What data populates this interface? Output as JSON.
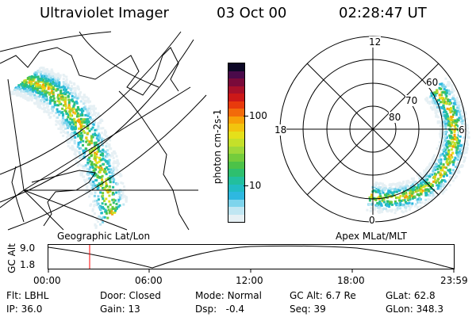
{
  "header": {
    "title": "Ultraviolet Imager",
    "date": "03 Oct 00",
    "time": "02:28:47 UT"
  },
  "colorbar": {
    "label": "photon cm-2s-1",
    "ticks": [
      "100",
      "10"
    ],
    "colors": [
      "#0d0826",
      "#4a0a4a",
      "#7a0a3a",
      "#a8102a",
      "#cc1818",
      "#e83a0c",
      "#f26a0a",
      "#f7a008",
      "#f2c40e",
      "#e5e01a",
      "#c4e02a",
      "#9ed83a",
      "#74cc3c",
      "#4cc248",
      "#2ebf6e",
      "#22bf9e",
      "#22bcc4",
      "#2eb8e0",
      "#7ed4ec",
      "#c0e6f2",
      "#e6f0f4"
    ]
  },
  "left_panel": {
    "label": "Geographic Lat/Lon"
  },
  "right_panel": {
    "label": "Apex MLat/MLT",
    "mlt_labels": [
      "12",
      "18",
      "6",
      "0"
    ],
    "lat_labels": [
      "60",
      "70",
      "80"
    ]
  },
  "timeline": {
    "ylabel": "GC Alt",
    "yticks": [
      "9.0",
      "1.8"
    ],
    "xticks": [
      "00:00",
      "06:00",
      "12:00",
      "18:00",
      "23:59"
    ]
  },
  "info": {
    "row1": [
      {
        "label": "Flt:",
        "value": "LBHL"
      },
      {
        "label": "Door:",
        "value": "Closed"
      },
      {
        "label": "Mode:",
        "value": "Normal"
      },
      {
        "label": "GC Alt:",
        "value": "6.7 Re"
      },
      {
        "label": "GLat:",
        "value": "62.8"
      }
    ],
    "row2": [
      {
        "label": "IP:",
        "value": "36.0"
      },
      {
        "label": "Gain:",
        "value": "13"
      },
      {
        "label": "Dsp:",
        "value": "-0.4"
      },
      {
        "label": "Seq:",
        "value": "39"
      },
      {
        "label": "GLon:",
        "value": "348.3"
      }
    ]
  }
}
